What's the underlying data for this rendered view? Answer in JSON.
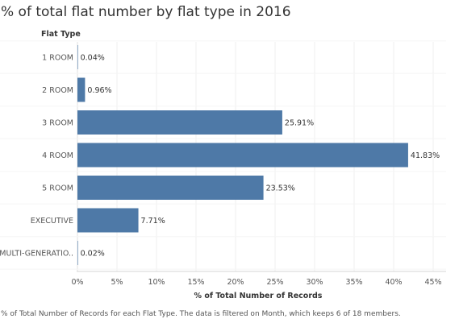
{
  "chart_data": {
    "type": "bar",
    "orientation": "horizontal",
    "title": "% of total flat number by flat type in 2016",
    "row_header": "Flat Type",
    "xlabel": "% of Total Number of Records",
    "categories": [
      "1 ROOM",
      "2 ROOM",
      "3 ROOM",
      "4 ROOM",
      "5 ROOM",
      "EXECUTIVE",
      "MULTI-GENERATIO.."
    ],
    "values": [
      0.04,
      0.96,
      25.91,
      41.83,
      23.53,
      7.71,
      0.02
    ],
    "value_labels": [
      "0.04%",
      "0.96%",
      "25.91%",
      "41.83%",
      "23.53%",
      "7.71%",
      "0.02%"
    ],
    "xlim": [
      0,
      45
    ],
    "xticks": [
      0,
      5,
      10,
      15,
      20,
      25,
      30,
      35,
      40,
      45
    ],
    "xtick_labels": [
      "0%",
      "5%",
      "10%",
      "15%",
      "20%",
      "25%",
      "30%",
      "35%",
      "40%",
      "45%"
    ],
    "bar_color": "#4e79a7",
    "grid": true,
    "footnote": "% of Total Number of Records for each Flat Type. The data is filtered on Month, which keeps 6 of 18 members."
  }
}
